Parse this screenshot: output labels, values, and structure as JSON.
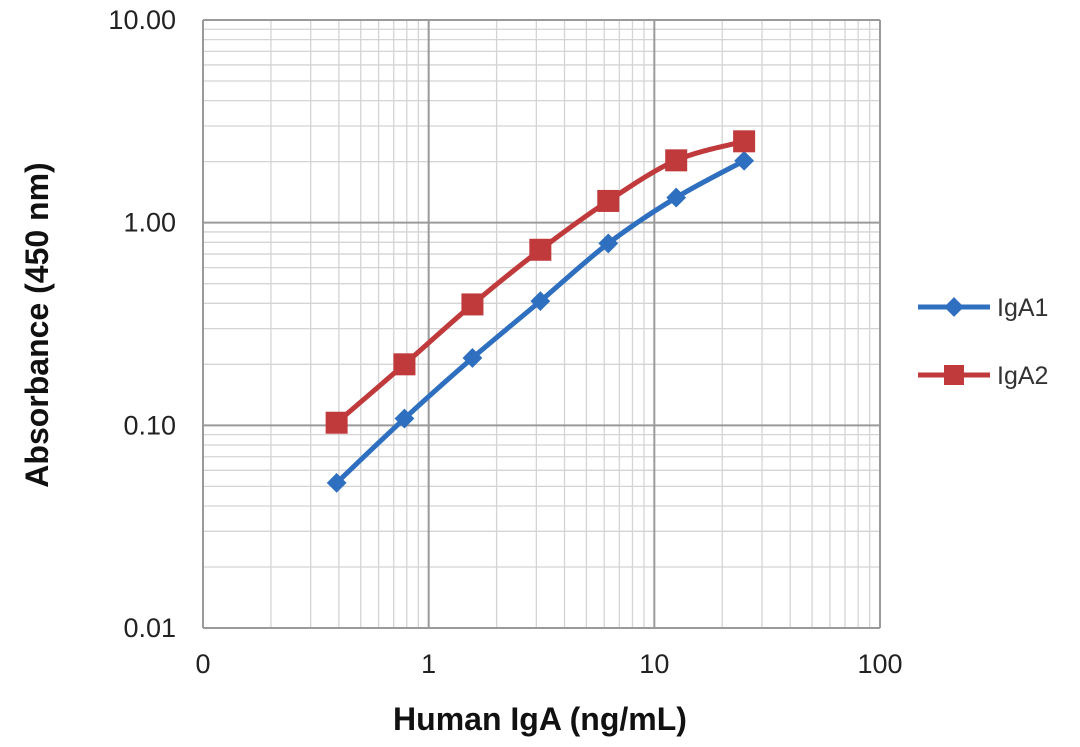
{
  "chart_data": {
    "type": "line",
    "title": "",
    "xlabel": "Human IgA (ng/mL)",
    "ylabel": "Absorbance  (450 nm)",
    "x_scale": "log",
    "y_scale": "log",
    "xlim": [
      0.1,
      100
    ],
    "ylim": [
      0.01,
      10
    ],
    "x_tick_labels": [
      "0",
      "1",
      "10",
      "100"
    ],
    "y_tick_labels": [
      "0.01",
      "0.10",
      "1.00",
      "10.00"
    ],
    "grid": true,
    "legend_position": "right",
    "series": [
      {
        "name": "IgA1",
        "color": "#2f6fbf",
        "marker": "diamond",
        "x": [
          0.391,
          0.781,
          1.563,
          3.125,
          6.25,
          12.5,
          25
        ],
        "y": [
          0.052,
          0.108,
          0.215,
          0.41,
          0.79,
          1.33,
          2.02
        ]
      },
      {
        "name": "IgA2",
        "color": "#c0393b",
        "marker": "square",
        "x": [
          0.391,
          0.781,
          1.563,
          3.125,
          6.25,
          12.5,
          25
        ],
        "y": [
          0.103,
          0.2,
          0.395,
          0.735,
          1.28,
          2.03,
          2.52
        ]
      }
    ]
  }
}
